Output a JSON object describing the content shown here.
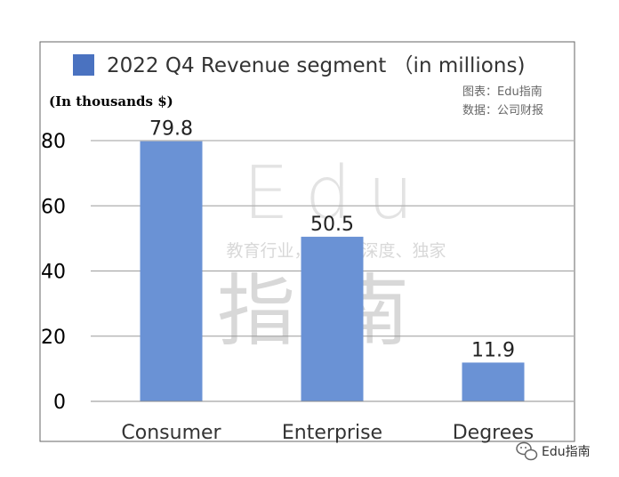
{
  "chart_data": {
    "type": "bar",
    "title": "2022 Q4 Revenue segment （in millions)",
    "ylabel": "(In thousands $)",
    "categories": [
      "Consumer",
      "Enterprise",
      "Degrees"
    ],
    "series": [
      {
        "name": "2022 Q4 Revenue segment （in millions)",
        "values": [
          79.8,
          50.5,
          11.9
        ],
        "color": "#6a92d5"
      }
    ],
    "data_labels": [
      "79.8",
      "50.5",
      "11.9"
    ],
    "ylim": [
      0,
      80
    ],
    "yticks": [
      0,
      20,
      40,
      60,
      80
    ],
    "grid": true,
    "legend": "top-left"
  },
  "source": {
    "chart_by": "图表：Edu指南",
    "data_from": "数据：公司财报"
  },
  "watermark": {
    "line1": "Edu",
    "line2": "教育行业，前沿、深度、独家",
    "line3": "指南"
  },
  "wechat_badge": {
    "label": "Edu指南"
  }
}
